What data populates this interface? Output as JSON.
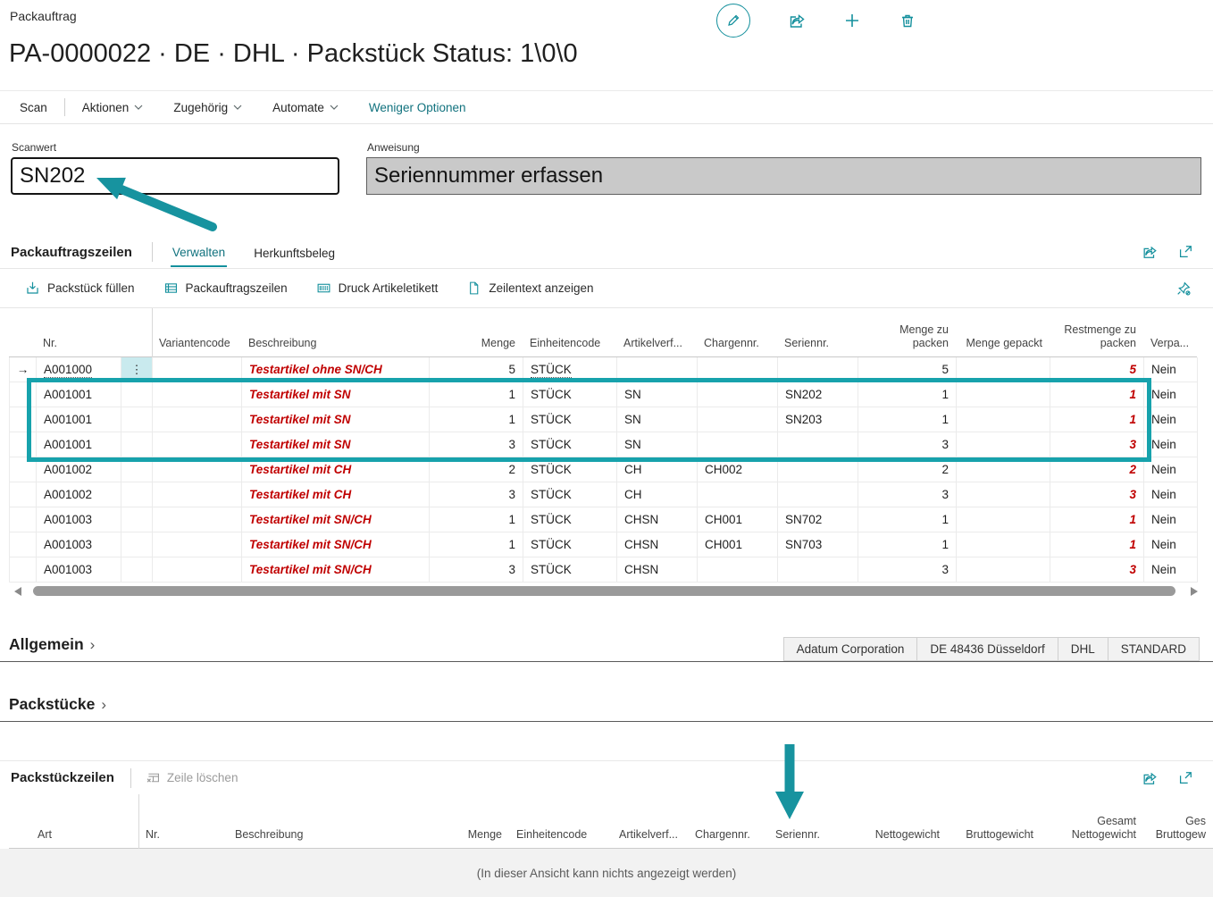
{
  "page": {
    "caption": "Packauftrag",
    "title": "PA-0000022 · DE · DHL · Packstück Status: 1\\0\\0"
  },
  "menu": {
    "items": [
      "Scan",
      "Aktionen",
      "Zugehörig",
      "Automate"
    ],
    "more_options": "Weniger Optionen"
  },
  "scan": {
    "label": "Scanwert",
    "value": "SN202"
  },
  "instruction": {
    "label": "Anweisung",
    "value": "Seriennummer erfassen"
  },
  "lines": {
    "title": "Packauftragszeilen",
    "tabs": [
      {
        "label": "Verwalten",
        "active": true
      },
      {
        "label": "Herkunftsbeleg",
        "active": false
      }
    ],
    "toolbar": [
      {
        "label": "Packstück füllen",
        "icon": "fill-package-icon"
      },
      {
        "label": "Packauftragszeilen",
        "icon": "lines-grid-icon"
      },
      {
        "label": "Druck Artikeletikett",
        "icon": "barcode-icon"
      },
      {
        "label": "Zeilentext anzeigen",
        "icon": "document-icon"
      }
    ],
    "columns": [
      "Nr.",
      "Variantencode",
      "Beschreibung",
      "Menge",
      "Einheitencode",
      "Artikelverf...",
      "Chargennr.",
      "Seriennr.",
      "Menge zu packen",
      "Menge gepackt",
      "Restmenge zu packen",
      "Verpa..."
    ],
    "rows": [
      {
        "nr": "A001000",
        "variant": "",
        "desc": "Testartikel ohne SN/CH",
        "menge": "5",
        "einheit": "STÜCK",
        "av": "",
        "ch": "",
        "sn": "",
        "mzp": "5",
        "mg": "",
        "rest": "5",
        "verpa": "Nein"
      },
      {
        "nr": "A001001",
        "variant": "",
        "desc": "Testartikel mit SN",
        "menge": "1",
        "einheit": "STÜCK",
        "av": "SN",
        "ch": "",
        "sn": "SN202",
        "mzp": "1",
        "mg": "",
        "rest": "1",
        "verpa": "Nein"
      },
      {
        "nr": "A001001",
        "variant": "",
        "desc": "Testartikel mit SN",
        "menge": "1",
        "einheit": "STÜCK",
        "av": "SN",
        "ch": "",
        "sn": "SN203",
        "mzp": "1",
        "mg": "",
        "rest": "1",
        "verpa": "Nein"
      },
      {
        "nr": "A001001",
        "variant": "",
        "desc": "Testartikel mit SN",
        "menge": "3",
        "einheit": "STÜCK",
        "av": "SN",
        "ch": "",
        "sn": "",
        "mzp": "3",
        "mg": "",
        "rest": "3",
        "verpa": "Nein"
      },
      {
        "nr": "A001002",
        "variant": "",
        "desc": "Testartikel mit CH",
        "menge": "2",
        "einheit": "STÜCK",
        "av": "CH",
        "ch": "CH002",
        "sn": "",
        "mzp": "2",
        "mg": "",
        "rest": "2",
        "verpa": "Nein"
      },
      {
        "nr": "A001002",
        "variant": "",
        "desc": "Testartikel mit CH",
        "menge": "3",
        "einheit": "STÜCK",
        "av": "CH",
        "ch": "",
        "sn": "",
        "mzp": "3",
        "mg": "",
        "rest": "3",
        "verpa": "Nein"
      },
      {
        "nr": "A001003",
        "variant": "",
        "desc": "Testartikel mit SN/CH",
        "menge": "1",
        "einheit": "STÜCK",
        "av": "CHSN",
        "ch": "CH001",
        "sn": "SN702",
        "mzp": "1",
        "mg": "",
        "rest": "1",
        "verpa": "Nein"
      },
      {
        "nr": "A001003",
        "variant": "",
        "desc": "Testartikel mit SN/CH",
        "menge": "1",
        "einheit": "STÜCK",
        "av": "CHSN",
        "ch": "CH001",
        "sn": "SN703",
        "mzp": "1",
        "mg": "",
        "rest": "1",
        "verpa": "Nein"
      },
      {
        "nr": "A001003",
        "variant": "",
        "desc": "Testartikel mit SN/CH",
        "menge": "3",
        "einheit": "STÜCK",
        "av": "CHSN",
        "ch": "",
        "sn": "",
        "mzp": "3",
        "mg": "",
        "rest": "3",
        "verpa": "Nein"
      }
    ],
    "highlighted_row_indexes": [
      1,
      2,
      3
    ]
  },
  "general": {
    "title": "Allgemein",
    "badges": [
      "Adatum Corporation",
      "DE 48436 Düsseldorf",
      "DHL",
      "STANDARD"
    ]
  },
  "packages": {
    "title": "Packstücke"
  },
  "package_lines": {
    "title": "Packstückzeilen",
    "delete_action": "Zeile löschen",
    "columns": [
      "Art",
      "Nr.",
      "Beschreibung",
      "Menge",
      "Einheitencode",
      "Artikelverf...",
      "Chargennr.",
      "Seriennr.",
      "Nettogewicht",
      "Bruttogewicht",
      "Gesamt Nettogewicht",
      "Ges Bruttogew"
    ],
    "empty_message": "(In dieser Ansicht kann nichts angezeigt werden)"
  },
  "icons": {
    "row_indicator_glyph": "→",
    "row_menu_glyph": "⋮",
    "chevron_right_glyph": "›"
  },
  "colors": {
    "accent": "#14909d",
    "annotation": "#17939f",
    "error_red": "#c00000",
    "highlight_cell": "#c9eaee"
  }
}
